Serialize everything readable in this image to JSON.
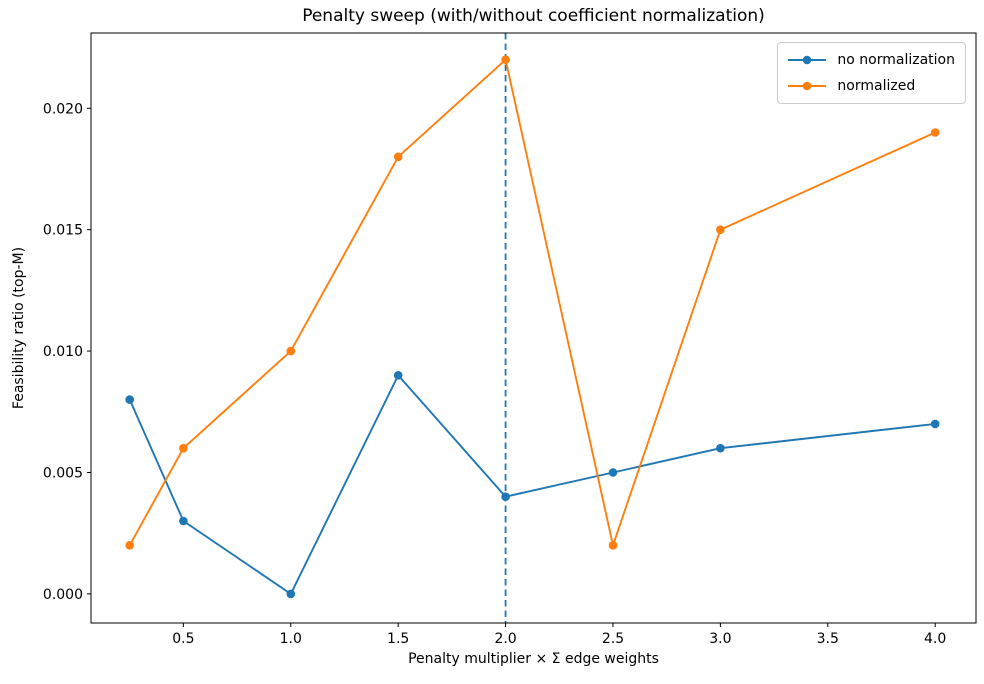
{
  "figure": {
    "background": "#ffffff",
    "text_color": "#000000",
    "spine_color": "#000000"
  },
  "chart_data": {
    "type": "line",
    "title": "Penalty sweep (with/without coefficient normalization)",
    "xlabel": "Penalty multiplier × Σ edge weights",
    "ylabel": "Feasibility ratio (top-M)",
    "x": [
      0.25,
      0.5,
      1.0,
      1.5,
      2.0,
      2.5,
      3.0,
      4.0
    ],
    "series": [
      {
        "name": "no normalization",
        "color": "#1f77b4",
        "marker": "circle",
        "values": [
          0.008,
          0.003,
          0.0,
          0.009,
          0.004,
          0.005,
          0.006,
          0.007
        ]
      },
      {
        "name": "normalized",
        "color": "#ff7f0e",
        "marker": "circle",
        "values": [
          0.002,
          0.006,
          0.01,
          0.018,
          0.022,
          0.002,
          0.015,
          0.019
        ]
      }
    ],
    "vline": {
      "x": 2.0,
      "color": "#1f77b4",
      "style": "dashed"
    },
    "xlim": [
      0.07,
      4.19
    ],
    "ylim": [
      -0.0012,
      0.0231
    ],
    "xticks": {
      "values": [
        0.5,
        1.0,
        1.5,
        2.0,
        2.5,
        3.0,
        3.5,
        4.0
      ],
      "labels": [
        "0.5",
        "1.0",
        "1.5",
        "2.0",
        "2.5",
        "3.0",
        "3.5",
        "4.0"
      ]
    },
    "yticks": {
      "values": [
        0.0,
        0.005,
        0.01,
        0.015,
        0.02
      ],
      "labels": [
        "0.000",
        "0.005",
        "0.010",
        "0.015",
        "0.020"
      ]
    },
    "legend": {
      "position": "upper right"
    },
    "grid": false
  }
}
